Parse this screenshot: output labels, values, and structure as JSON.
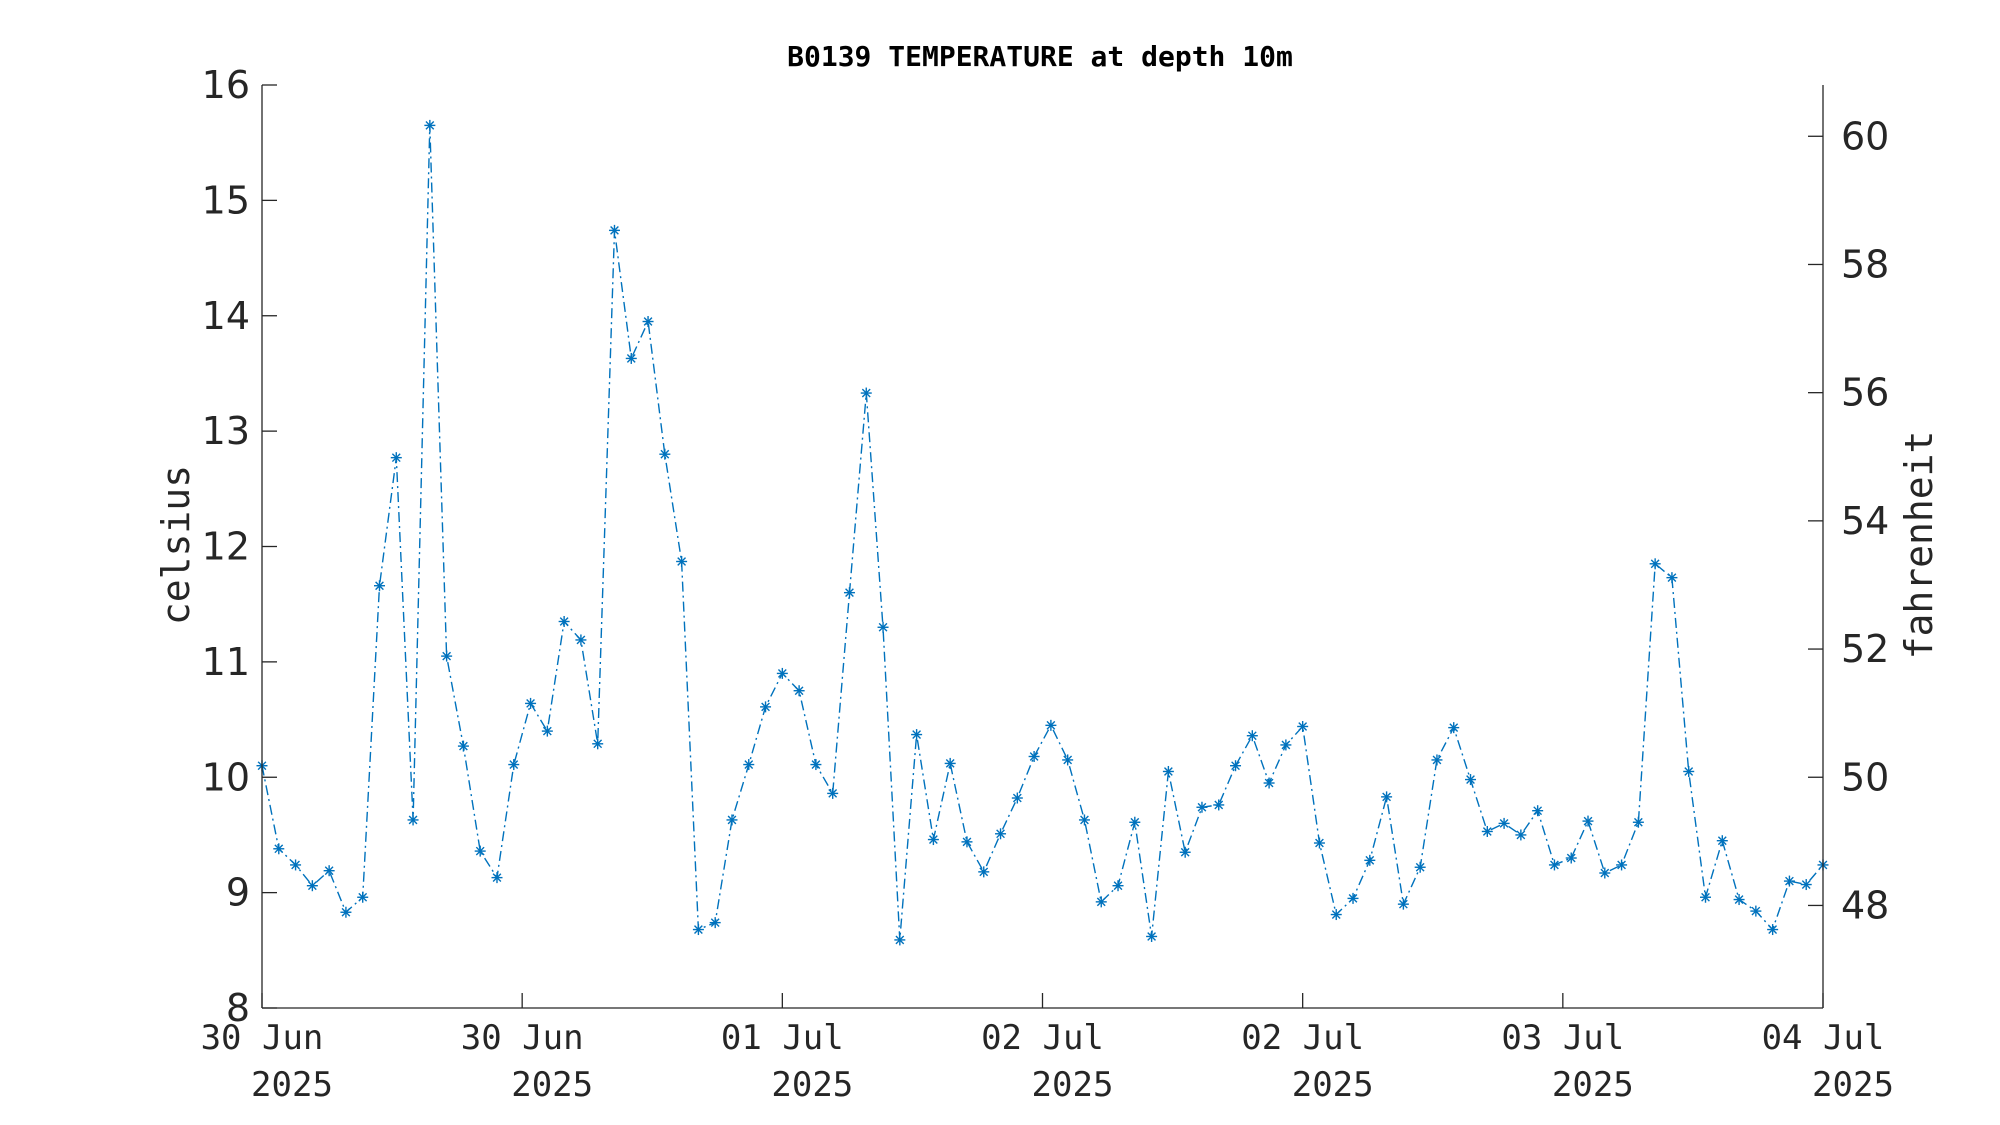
{
  "chart_data": {
    "type": "line",
    "title": "B0139 TEMPERATURE at depth 10m",
    "ylabel": "celsius",
    "y2label": "fahrenheit",
    "ylim": [
      8,
      16
    ],
    "y2lim": [
      46.4,
      60.8
    ],
    "yticks": [
      "8",
      "9",
      "10",
      "11",
      "12",
      "13",
      "14",
      "15",
      "16"
    ],
    "y2ticks": [
      "48",
      "50",
      "52",
      "54",
      "56",
      "58",
      "60"
    ],
    "xtick_labels": [
      {
        "day": "30 Jun",
        "year": "2025"
      },
      {
        "day": "30 Jun",
        "year": "2025"
      },
      {
        "day": "01 Jul",
        "year": "2025"
      },
      {
        "day": "02 Jul",
        "year": "2025"
      },
      {
        "day": "02 Jul",
        "year": "2025"
      },
      {
        "day": "03 Jul",
        "year": "2025"
      },
      {
        "day": "04 Jul",
        "year": "2025"
      }
    ],
    "marker": "asterisk",
    "line_style": "dash-dot",
    "color": "#0072BD",
    "grid": false,
    "series": [
      {
        "values": [
          10.1,
          9.38,
          9.24,
          9.06,
          9.19,
          8.83,
          8.96,
          11.66,
          12.77,
          9.63,
          15.65,
          11.05,
          10.27,
          9.36,
          9.13,
          10.11,
          10.64,
          10.4,
          11.35,
          11.19,
          10.29,
          14.74,
          13.63,
          13.95,
          12.8,
          11.87,
          8.68,
          8.74,
          9.63,
          10.11,
          10.61,
          10.9,
          10.75,
          10.11,
          9.86,
          11.6,
          13.33,
          11.3,
          8.59,
          10.37,
          9.46,
          10.12,
          9.44,
          9.18,
          9.51,
          9.82,
          10.18,
          10.45,
          10.15,
          9.63,
          8.92,
          9.06,
          9.61,
          8.62,
          10.05,
          9.35,
          9.74,
          9.76,
          10.1,
          10.36,
          9.95,
          10.28,
          10.44,
          9.43,
          8.81,
          8.95,
          9.28,
          9.83,
          8.9,
          9.22,
          10.15,
          10.43,
          9.98,
          9.53,
          9.6,
          9.5,
          9.71,
          9.24,
          9.3,
          9.62,
          9.17,
          9.24,
          9.61,
          11.85,
          11.73,
          10.05,
          8.96,
          9.45,
          8.94,
          8.84,
          8.68,
          9.1,
          9.07,
          9.24
        ]
      }
    ]
  }
}
